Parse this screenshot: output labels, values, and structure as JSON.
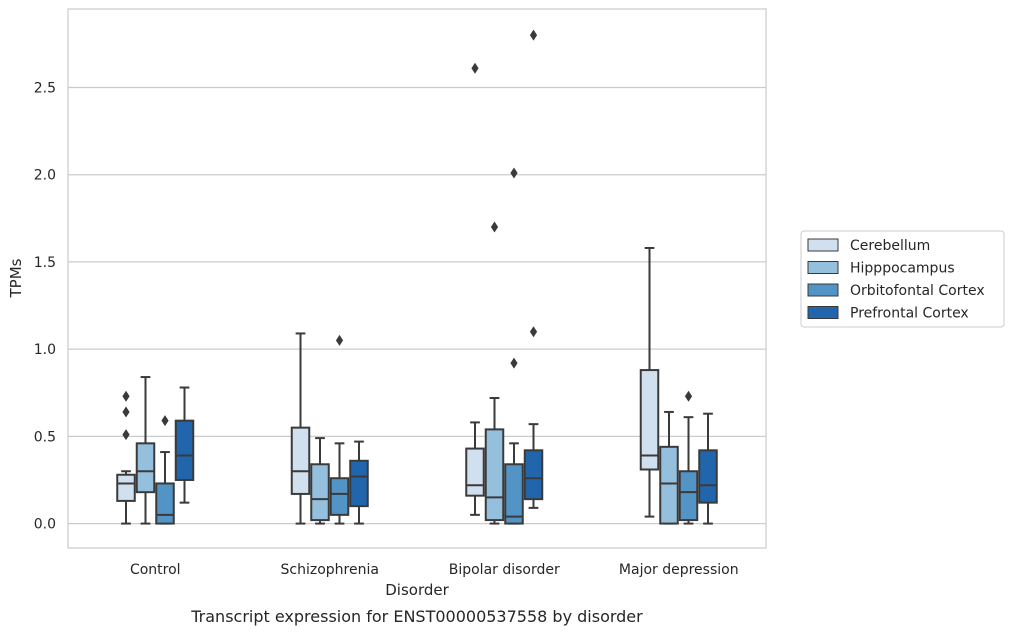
{
  "chart_data": {
    "type": "box",
    "caption": "Transcript expression for ENST00000537558 by disorder",
    "xlabel": "Disorder",
    "ylabel": "TPMs",
    "ylim": [
      -0.14,
      2.95
    ],
    "yticks": [
      "0.0",
      "0.5",
      "1.0",
      "1.5",
      "2.0",
      "2.5"
    ],
    "ytick_values": [
      0.0,
      0.5,
      1.0,
      1.5,
      2.0,
      2.5
    ],
    "grid": true,
    "legend_position": "right",
    "categories": [
      "Control",
      "Schizophrenia",
      "Bipolar disorder",
      "Major depression"
    ],
    "series": [
      {
        "name": "Cerebellum",
        "color": "#d1e0ef",
        "boxes": [
          {
            "whislo": 0.0,
            "q1": 0.13,
            "med": 0.23,
            "q3": 0.28,
            "whishi": 0.3,
            "fliers": [
              0.51,
              0.64,
              0.73
            ]
          },
          {
            "whislo": 0.0,
            "q1": 0.17,
            "med": 0.3,
            "q3": 0.55,
            "whishi": 1.09,
            "fliers": []
          },
          {
            "whislo": 0.05,
            "q1": 0.16,
            "med": 0.22,
            "q3": 0.43,
            "whishi": 0.58,
            "fliers": [
              2.61
            ]
          },
          {
            "whislo": 0.04,
            "q1": 0.31,
            "med": 0.39,
            "q3": 0.88,
            "whishi": 1.58,
            "fliers": []
          }
        ]
      },
      {
        "name": "Hipppocampus",
        "color": "#94c0dd",
        "boxes": [
          {
            "whislo": 0.0,
            "q1": 0.18,
            "med": 0.3,
            "q3": 0.46,
            "whishi": 0.84,
            "fliers": []
          },
          {
            "whislo": 0.0,
            "q1": 0.02,
            "med": 0.14,
            "q3": 0.34,
            "whishi": 0.49,
            "fliers": []
          },
          {
            "whislo": 0.0,
            "q1": 0.02,
            "med": 0.15,
            "q3": 0.54,
            "whishi": 0.72,
            "fliers": [
              1.7
            ]
          },
          {
            "whislo": 0.0,
            "q1": 0.0,
            "med": 0.23,
            "q3": 0.44,
            "whishi": 0.64,
            "fliers": []
          }
        ]
      },
      {
        "name": "Orbitofontal Cortex",
        "color": "#5294c6",
        "boxes": [
          {
            "whislo": 0.0,
            "q1": 0.0,
            "med": 0.05,
            "q3": 0.23,
            "whishi": 0.41,
            "fliers": [
              0.59
            ]
          },
          {
            "whislo": 0.0,
            "q1": 0.05,
            "med": 0.17,
            "q3": 0.26,
            "whishi": 0.46,
            "fliers": [
              1.05
            ]
          },
          {
            "whislo": 0.0,
            "q1": 0.0,
            "med": 0.04,
            "q3": 0.34,
            "whishi": 0.46,
            "fliers": [
              0.92,
              2.01
            ]
          },
          {
            "whislo": 0.0,
            "q1": 0.02,
            "med": 0.18,
            "q3": 0.3,
            "whishi": 0.61,
            "fliers": [
              0.73
            ]
          }
        ]
      },
      {
        "name": "Prefrontal Cortex",
        "color": "#2166ac",
        "boxes": [
          {
            "whislo": 0.12,
            "q1": 0.25,
            "med": 0.39,
            "q3": 0.59,
            "whishi": 0.78,
            "fliers": []
          },
          {
            "whislo": 0.0,
            "q1": 0.1,
            "med": 0.27,
            "q3": 0.36,
            "whishi": 0.47,
            "fliers": []
          },
          {
            "whislo": 0.09,
            "q1": 0.14,
            "med": 0.26,
            "q3": 0.42,
            "whishi": 0.57,
            "fliers": [
              1.1,
              2.8
            ]
          },
          {
            "whislo": 0.0,
            "q1": 0.12,
            "med": 0.22,
            "q3": 0.42,
            "whishi": 0.63,
            "fliers": []
          }
        ]
      }
    ]
  }
}
